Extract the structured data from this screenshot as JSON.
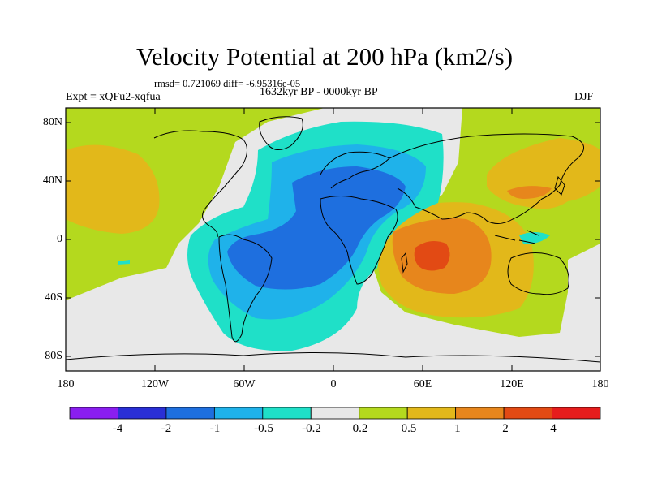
{
  "title": "Velocity Potential at 200 hPa (km2/s)",
  "stats": "rmsd= 0.721069 diff= -6.95316e-05",
  "experiment": "Expt = xQFu2-xqfua",
  "period": "1632kyr BP - 0000kyr BP",
  "season": "DJF",
  "lat_labels": [
    "80N",
    "40N",
    "0",
    "40S",
    "80S"
  ],
  "lon_labels": [
    "180",
    "120W",
    "60W",
    "0",
    "60E",
    "120E",
    "180"
  ],
  "colorbar": {
    "labels": [
      "-4",
      "-2",
      "-1",
      "-0.5",
      "-0.2",
      "0.2",
      "0.5",
      "1",
      "2",
      "4"
    ],
    "colors": [
      "#8a1ef0",
      "#2a2fd6",
      "#1e6fdf",
      "#1fb2ea",
      "#1fe0c8",
      "#e8e8e8",
      "#b4d91e",
      "#e2b81a",
      "#e7861c",
      "#e24a14",
      "#e61c1c"
    ]
  },
  "field_colors": {
    "neg_1": "#1fe0c8",
    "neg_2": "#1fb2ea",
    "neg_3": "#1e6fdf",
    "neutral": "#e8e8e8",
    "pos_1": "#b4d91e",
    "pos_2": "#e2b81a",
    "pos_3": "#e7861c",
    "pos_4": "#e24a14"
  }
}
